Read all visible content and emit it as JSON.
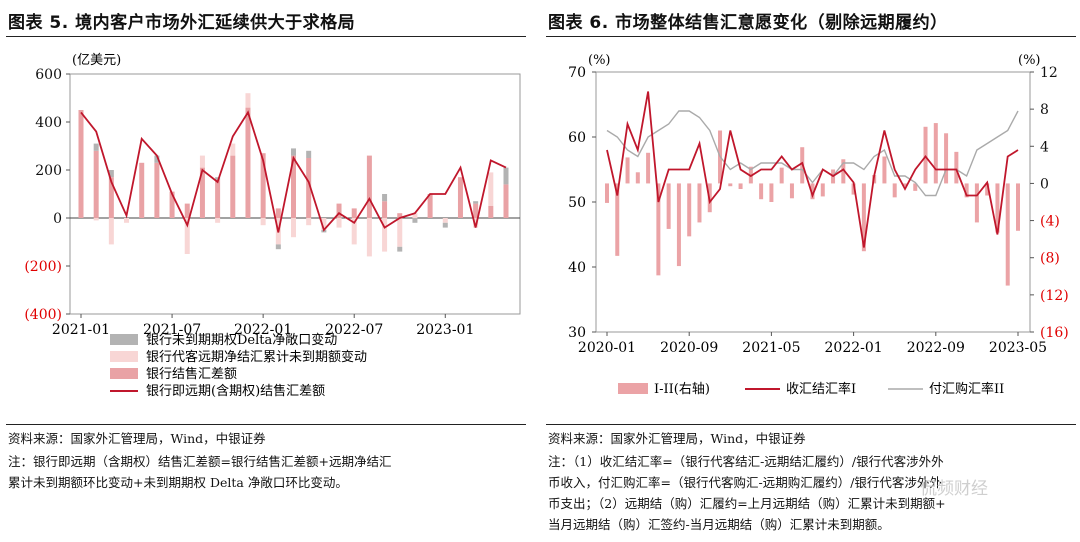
{
  "left": {
    "title": "图表 5.  境内客户市场外汇延续供大于求格局",
    "source": "资料来源：国家外汇管理局，Wind，中银证券",
    "note_lines": [
      "注：银行即远期（含期权）结售汇差额=银行结售汇差额+远期净结汇",
      "累计未到期额环比变动+未到期期权 Delta 净敞口环比变动。"
    ],
    "colors": {
      "line": "#c0172c",
      "settle": "#e9a2a5",
      "forward": "#f8d6d5",
      "delta": "#b3b3b3",
      "neg_tick": "#e00000"
    }
  },
  "right": {
    "title": "图表 6.  市场整体结售汇意愿变化（剔除远期履约）",
    "source": "资料来源：国家外汇管理局，Wind，中银证券",
    "note_lines": [
      "注：（1）收汇结汇率=（银行代客结汇-远期结汇履约）/银行代客涉外外",
      "币收入，付汇购汇率=（银行代客购汇-远期购汇履约）/银行代客涉外外",
      "币支出；（2）远期结（购）汇履约=上月远期结（购）汇累计未到期额+",
      "当月远期结（购）汇签约-当月远期结（购）汇累计未到期额。"
    ],
    "colors": {
      "line1": "#c0172c",
      "line2": "#aaaaaa",
      "bar": "#eba3a6",
      "neg_tick": "#e00000"
    }
  },
  "watermark": "侃频财经",
  "chart_data": [
    {
      "type": "bar",
      "ylabel": "(亿美元)",
      "ylim": [
        -400,
        600
      ],
      "yticks": [
        600,
        400,
        200,
        0,
        -200,
        -400
      ],
      "ytick_labels": [
        "600",
        "400",
        "200",
        "0",
        "(200)",
        "(400)"
      ],
      "xtick_labels": [
        "2021-01",
        "2021-07",
        "2022-01",
        "2022-07",
        "2023-01"
      ],
      "categories": [
        "2021-01",
        "2021-02",
        "2021-03",
        "2021-04",
        "2021-05",
        "2021-06",
        "2021-07",
        "2021-08",
        "2021-09",
        "2021-10",
        "2021-11",
        "2021-12",
        "2022-01",
        "2022-02",
        "2022-03",
        "2022-04",
        "2022-05",
        "2022-06",
        "2022-07",
        "2022-08",
        "2022-09",
        "2022-10",
        "2022-11",
        "2022-12",
        "2023-01",
        "2023-02",
        "2023-03",
        "2023-04",
        "2023-05"
      ],
      "series": [
        {
          "name": "银行未到期期权Delta净敞口变动",
          "kind": "bar",
          "values": [
            0,
            30,
            30,
            0,
            0,
            30,
            0,
            0,
            0,
            10,
            0,
            0,
            0,
            -20,
            30,
            30,
            -10,
            0,
            0,
            0,
            30,
            -20,
            -20,
            0,
            -20,
            0,
            10,
            0,
            70
          ]
        },
        {
          "name": "银行代客远期净结汇累计未到期额变动",
          "kind": "bar",
          "values": [
            0,
            -10,
            -110,
            -20,
            0,
            0,
            0,
            -150,
            50,
            -20,
            50,
            60,
            -30,
            -110,
            -80,
            -30,
            -50,
            -40,
            -110,
            -160,
            -140,
            -120,
            20,
            0,
            -20,
            0,
            -40,
            140,
            0
          ]
        },
        {
          "name": "银行结售汇差额",
          "kind": "bar",
          "values": [
            450,
            280,
            170,
            0,
            230,
            230,
            110,
            60,
            210,
            160,
            260,
            460,
            270,
            40,
            260,
            250,
            0,
            60,
            40,
            260,
            70,
            20,
            0,
            100,
            0,
            170,
            60,
            50,
            140
          ]
        },
        {
          "name": "银行即远期(含期权)结售汇差额",
          "kind": "line",
          "values": [
            440,
            360,
            150,
            10,
            330,
            260,
            100,
            -30,
            200,
            150,
            340,
            440,
            240,
            -60,
            250,
            150,
            -50,
            20,
            -20,
            80,
            -40,
            0,
            20,
            100,
            100,
            210,
            -40,
            240,
            210
          ]
        }
      ]
    },
    {
      "type": "bar",
      "ylim_left": [
        30,
        70
      ],
      "yticks_left": [
        30,
        40,
        50,
        60,
        70
      ],
      "ylim_right": [
        -16,
        12
      ],
      "yticks_right": [
        12,
        8,
        4,
        0,
        -4,
        -8,
        -12,
        -16
      ],
      "ytick_labels_right": [
        "12",
        "8",
        "4",
        "0",
        "(4)",
        "(8)",
        "(12)",
        "(16)"
      ],
      "ylabel_left": "(%)",
      "ylabel_right": "(%)",
      "xtick_labels": [
        "2020-01",
        "2020-09",
        "2021-05",
        "2022-01",
        "2022-09",
        "2023-05"
      ],
      "categories": [
        "2020-01",
        "2020-02",
        "2020-03",
        "2020-04",
        "2020-05",
        "2020-06",
        "2020-07",
        "2020-08",
        "2020-09",
        "2020-10",
        "2020-11",
        "2020-12",
        "2021-01",
        "2021-02",
        "2021-03",
        "2021-04",
        "2021-05",
        "2021-06",
        "2021-07",
        "2021-08",
        "2021-09",
        "2021-10",
        "2021-11",
        "2021-12",
        "2022-01",
        "2022-02",
        "2022-03",
        "2022-04",
        "2022-05",
        "2022-06",
        "2022-07",
        "2022-08",
        "2022-09",
        "2022-10",
        "2022-11",
        "2022-12",
        "2023-01",
        "2023-02",
        "2023-03",
        "2023-04",
        "2023-05"
      ],
      "series": [
        {
          "name": "I-II(右轴)",
          "kind": "bar",
          "axis": "right",
          "values": [
            -2.1,
            -7.8,
            2.8,
            1.2,
            3.3,
            -9.9,
            -4.9,
            -8.9,
            -5.7,
            -4.2,
            -3.1,
            5.7,
            -0.3,
            -0.6,
            1.8,
            -1.7,
            -2.0,
            1.7,
            -1.6,
            3.9,
            -1.7,
            -1.4,
            1.5,
            2.6,
            -1.2,
            -7.3,
            0.9,
            2.9,
            -1.5,
            -0.3,
            -0.8,
            6.1,
            6.5,
            5.4,
            3.4,
            -1.5,
            -4.2,
            -1.3,
            -5.3,
            -11.0,
            -5.1
          ]
        },
        {
          "name": "收汇结汇率I",
          "kind": "line",
          "axis": "left",
          "values": [
            58,
            51,
            62,
            58,
            67,
            50,
            55,
            55,
            55,
            59,
            50,
            52,
            61,
            55,
            54,
            55,
            55,
            57,
            55,
            56,
            51,
            55,
            54,
            55,
            53,
            43,
            54,
            61,
            55,
            52,
            55,
            57,
            55,
            55,
            55,
            51,
            51,
            53,
            45,
            57,
            58
          ]
        },
        {
          "name": "付汇购汇率II",
          "kind": "line",
          "axis": "left",
          "values": [
            61,
            60,
            58,
            57,
            60,
            61,
            62,
            64,
            64,
            63,
            61,
            57,
            55,
            56,
            55,
            56,
            56,
            56,
            55,
            55,
            53,
            55,
            54,
            56,
            56,
            55,
            57,
            58,
            54,
            54,
            53,
            51,
            51,
            55,
            55,
            54,
            58,
            59,
            60,
            61,
            64
          ]
        }
      ]
    }
  ]
}
